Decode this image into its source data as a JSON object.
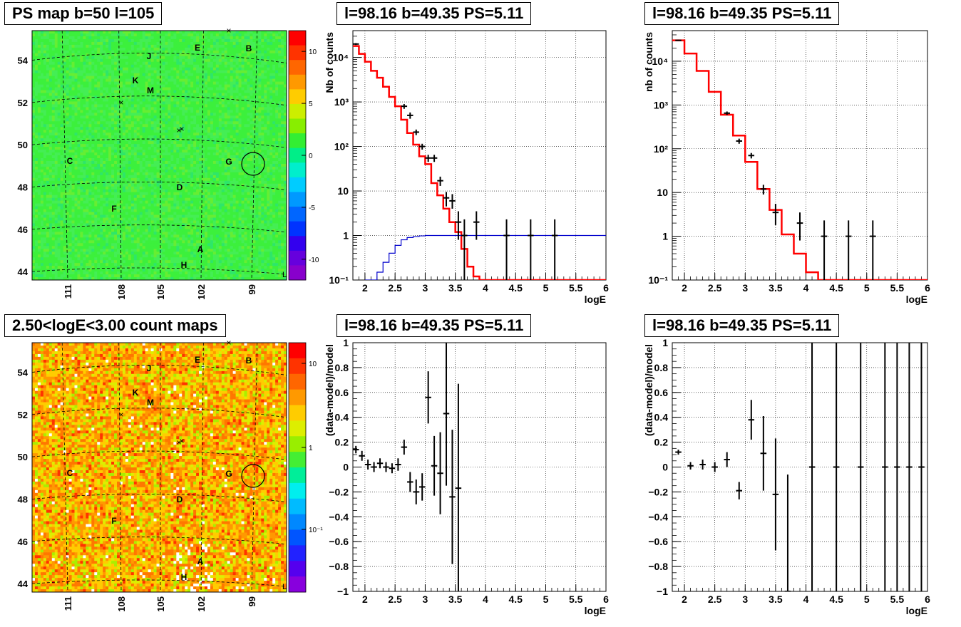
{
  "panels": {
    "map_top": {
      "title": "PS map b=50 l=105"
    },
    "map_bottom": {
      "title": "2.50<logE<3.00 count maps"
    },
    "spec1": {
      "title": "l=98.16 b=49.35 PS=5.11"
    },
    "spec2": {
      "title": "l=98.16 b=49.35 PS=5.11"
    },
    "res1": {
      "title": "l=98.16 b=49.35 PS=5.11"
    },
    "res2": {
      "title": "l=98.16 b=49.35 PS=5.11"
    }
  },
  "colors": {
    "model": "#ff0000",
    "background_model": "#0000cc",
    "data": "#000000"
  },
  "chart_data": [
    {
      "type": "heatmap",
      "title": "PS map b=50 l=105",
      "x_ticks": [
        "111",
        "108",
        "105",
        "102",
        "99"
      ],
      "y_ticks": [
        "44",
        "46",
        "48",
        "50",
        "52",
        "54"
      ],
      "ylim": [
        43.6,
        55.4
      ],
      "colorbar_ticks": [
        "10",
        "5",
        "0",
        "-5",
        "-10"
      ],
      "colorbar_range": [
        -12,
        12
      ],
      "source_labels": [
        "J",
        "E",
        "B",
        "K",
        "M",
        "C",
        "G",
        "D",
        "F",
        "A",
        "H"
      ],
      "circle_marker": {
        "l": 98.16,
        "b": 49.35
      }
    },
    {
      "type": "heatmap",
      "title": "2.50<logE<3.00 count maps",
      "x_ticks": [
        "111",
        "108",
        "105",
        "102",
        "99"
      ],
      "y_ticks": [
        "44",
        "46",
        "48",
        "50",
        "52",
        "54"
      ],
      "ylim": [
        43.6,
        55.4
      ],
      "colorbar_ticks": [
        "10",
        "1",
        "10⁻¹"
      ],
      "colorbar_scale": "log",
      "source_labels": [
        "J",
        "E",
        "B",
        "K",
        "M",
        "C",
        "G",
        "D",
        "F",
        "A",
        "H"
      ]
    },
    {
      "type": "line",
      "title": "l=98.16 b=49.35 PS=5.11",
      "xlabel": "logE",
      "ylabel": "Nb of counts",
      "yscale": "log",
      "xlim": [
        1.8,
        6
      ],
      "ylim": [
        0.1,
        40000
      ],
      "x_ticks": [
        "2",
        "2.5",
        "3",
        "3.5",
        "4",
        "4.5",
        "5",
        "5.5",
        "6"
      ],
      "y_ticks": [
        "10⁻¹",
        "1",
        "10",
        "10²",
        "10³",
        "10⁴"
      ],
      "grid": true,
      "series": [
        {
          "name": "",
          "kind": "step",
          "color": "#ff0000",
          "edges": [
            1.8,
            1.9,
            2.0,
            2.1,
            2.2,
            2.3,
            2.4,
            2.5,
            2.6,
            2.7,
            2.8,
            2.9,
            3.0,
            3.1,
            3.2,
            3.3,
            3.4,
            3.5,
            3.6,
            3.7,
            3.8,
            3.9,
            4.0,
            6.0
          ],
          "values": [
            18000,
            12000,
            8000,
            5000,
            3500,
            2200,
            1300,
            800,
            400,
            200,
            110,
            60,
            40,
            15,
            8,
            4,
            2,
            1.2,
            0.5,
            0.2,
            0.12,
            0.1,
            0.1
          ]
        },
        {
          "name": "",
          "kind": "step",
          "color": "#0000cc",
          "edges": [
            2.0,
            2.1,
            2.2,
            2.3,
            2.4,
            2.5,
            2.6,
            2.7,
            2.8,
            2.9,
            3.0,
            3.1,
            3.2,
            6.0
          ],
          "values": [
            0.08,
            0.1,
            0.15,
            0.25,
            0.4,
            0.6,
            0.8,
            0.9,
            0.95,
            0.98,
            1.0,
            1.0,
            1.0
          ]
        },
        {
          "name": "",
          "kind": "errorbar",
          "color": "#000000",
          "points": [
            {
              "x": 1.85,
              "y": 20000,
              "ylo": 19000,
              "yhi": 21000
            },
            {
              "x": 2.65,
              "y": 800,
              "ylo": 700,
              "yhi": 900
            },
            {
              "x": 2.75,
              "y": 500,
              "ylo": 420,
              "yhi": 580
            },
            {
              "x": 2.85,
              "y": 210,
              "ylo": 180,
              "yhi": 240
            },
            {
              "x": 2.95,
              "y": 100,
              "ylo": 85,
              "yhi": 115
            },
            {
              "x": 3.05,
              "y": 55,
              "ylo": 45,
              "yhi": 65
            },
            {
              "x": 3.15,
              "y": 55,
              "ylo": 45,
              "yhi": 65
            },
            {
              "x": 3.25,
              "y": 17,
              "ylo": 13,
              "yhi": 21
            },
            {
              "x": 3.35,
              "y": 7,
              "ylo": 4.5,
              "yhi": 9.5
            },
            {
              "x": 3.45,
              "y": 6,
              "ylo": 4,
              "yhi": 8.5
            },
            {
              "x": 3.55,
              "y": 2,
              "ylo": 0.8,
              "yhi": 3.5
            },
            {
              "x": 3.65,
              "y": 1,
              "ylo": 0.1,
              "yhi": 2.3
            },
            {
              "x": 3.85,
              "y": 2,
              "ylo": 0.8,
              "yhi": 3.5
            },
            {
              "x": 4.35,
              "y": 1,
              "ylo": 0.1,
              "yhi": 2.3
            },
            {
              "x": 4.75,
              "y": 1,
              "ylo": 0.1,
              "yhi": 2.3
            },
            {
              "x": 5.15,
              "y": 1,
              "ylo": 0.1,
              "yhi": 2.3
            }
          ]
        }
      ]
    },
    {
      "type": "line",
      "title": "l=98.16 b=49.35 PS=5.11",
      "xlabel": "logE",
      "ylabel": "nb of counts",
      "yscale": "log",
      "xlim": [
        1.8,
        6
      ],
      "ylim": [
        0.1,
        50000
      ],
      "x_ticks": [
        "2",
        "2.5",
        "3",
        "3.5",
        "4",
        "4.5",
        "5",
        "5.5",
        "6"
      ],
      "y_ticks": [
        "10⁻¹",
        "1",
        "10",
        "10²",
        "10³",
        "10⁴"
      ],
      "grid": true,
      "series": [
        {
          "name": "",
          "kind": "step",
          "color": "#ff0000",
          "edges": [
            1.8,
            2.0,
            2.2,
            2.4,
            2.6,
            2.8,
            3.0,
            3.2,
            3.4,
            3.6,
            3.8,
            4.0,
            4.2,
            6.0
          ],
          "values": [
            30000,
            15000,
            6000,
            2000,
            600,
            200,
            50,
            12,
            4,
            1.1,
            0.4,
            0.15,
            0.1
          ]
        },
        {
          "name": "",
          "kind": "errorbar",
          "color": "#000000",
          "points": [
            {
              "x": 1.9,
              "y": 30000,
              "ylo": 29000,
              "yhi": 31000
            },
            {
              "x": 2.7,
              "y": 650,
              "ylo": 590,
              "yhi": 710
            },
            {
              "x": 2.9,
              "y": 150,
              "ylo": 130,
              "yhi": 170
            },
            {
              "x": 3.1,
              "y": 70,
              "ylo": 60,
              "yhi": 80
            },
            {
              "x": 3.3,
              "y": 12,
              "ylo": 9,
              "yhi": 15
            },
            {
              "x": 3.5,
              "y": 3.5,
              "ylo": 1.8,
              "yhi": 5.5
            },
            {
              "x": 3.9,
              "y": 2,
              "ylo": 0.8,
              "yhi": 3.5
            },
            {
              "x": 4.3,
              "y": 1,
              "ylo": 0.1,
              "yhi": 2.3
            },
            {
              "x": 4.7,
              "y": 1,
              "ylo": 0.1,
              "yhi": 2.3
            },
            {
              "x": 5.1,
              "y": 1,
              "ylo": 0.1,
              "yhi": 2.3
            }
          ]
        }
      ]
    },
    {
      "type": "scatter",
      "title": "l=98.16 b=49.35 PS=5.11",
      "xlabel": "logE",
      "ylabel": "(data-model)/model",
      "xlim": [
        1.8,
        6
      ],
      "ylim": [
        -1,
        1
      ],
      "x_ticks": [
        "2",
        "2.5",
        "3",
        "3.5",
        "4",
        "4.5",
        "5",
        "5.5",
        "6"
      ],
      "y_ticks": [
        "−1",
        "−0.8",
        "−0.6",
        "−0.4",
        "−0.2",
        "0",
        "0.2",
        "0.4",
        "0.6",
        "0.8",
        "1"
      ],
      "grid": true,
      "series": [
        {
          "name": "",
          "kind": "errorbar",
          "color": "#000000",
          "points": [
            {
              "x": 1.85,
              "y": 0.14,
              "ylo": 0.11,
              "yhi": 0.17
            },
            {
              "x": 1.95,
              "y": 0.09,
              "ylo": 0.05,
              "yhi": 0.13
            },
            {
              "x": 2.05,
              "y": 0.02,
              "ylo": -0.02,
              "yhi": 0.06
            },
            {
              "x": 2.15,
              "y": 0.0,
              "ylo": -0.04,
              "yhi": 0.04
            },
            {
              "x": 2.25,
              "y": 0.03,
              "ylo": -0.01,
              "yhi": 0.07
            },
            {
              "x": 2.35,
              "y": 0.0,
              "ylo": -0.04,
              "yhi": 0.04
            },
            {
              "x": 2.45,
              "y": -0.01,
              "ylo": -0.05,
              "yhi": 0.03
            },
            {
              "x": 2.55,
              "y": 0.02,
              "ylo": -0.03,
              "yhi": 0.07
            },
            {
              "x": 2.65,
              "y": 0.16,
              "ylo": 0.1,
              "yhi": 0.22
            },
            {
              "x": 2.75,
              "y": -0.12,
              "ylo": -0.2,
              "yhi": -0.04
            },
            {
              "x": 2.85,
              "y": -0.2,
              "ylo": -0.3,
              "yhi": -0.1
            },
            {
              "x": 2.95,
              "y": -0.16,
              "ylo": -0.27,
              "yhi": -0.05
            },
            {
              "x": 3.05,
              "y": 0.56,
              "ylo": 0.35,
              "yhi": 0.77
            },
            {
              "x": 3.15,
              "y": 0.01,
              "ylo": -0.23,
              "yhi": 0.25
            },
            {
              "x": 3.25,
              "y": -0.05,
              "ylo": -0.38,
              "yhi": 0.28
            },
            {
              "x": 3.35,
              "y": 0.43,
              "ylo": -0.15,
              "yhi": 1.0
            },
            {
              "x": 3.45,
              "y": -0.24,
              "ylo": -0.78,
              "yhi": 0.3
            },
            {
              "x": 3.55,
              "y": -0.17,
              "ylo": -1.0,
              "yhi": 0.67
            }
          ]
        }
      ]
    },
    {
      "type": "scatter",
      "title": "l=98.16 b=49.35 PS=5.11",
      "xlabel": "logE",
      "ylabel": "(data-model)/model",
      "xlim": [
        1.8,
        6
      ],
      "ylim": [
        -1,
        1
      ],
      "x_ticks": [
        "2",
        "2.5",
        "3",
        "3.5",
        "4",
        "4.5",
        "5",
        "5.5",
        "6"
      ],
      "y_ticks": [
        "−1",
        "−0.8",
        "−0.6",
        "−0.4",
        "−0.2",
        "0",
        "0.2",
        "0.4",
        "0.6",
        "0.8",
        "1"
      ],
      "grid": true,
      "series": [
        {
          "name": "",
          "kind": "errorbar",
          "color": "#000000",
          "points": [
            {
              "x": 1.9,
              "y": 0.12,
              "ylo": 0.1,
              "yhi": 0.14
            },
            {
              "x": 2.1,
              "y": 0.01,
              "ylo": -0.02,
              "yhi": 0.04
            },
            {
              "x": 2.3,
              "y": 0.02,
              "ylo": -0.02,
              "yhi": 0.06
            },
            {
              "x": 2.5,
              "y": 0.0,
              "ylo": -0.04,
              "yhi": 0.04
            },
            {
              "x": 2.7,
              "y": 0.06,
              "ylo": 0.0,
              "yhi": 0.12
            },
            {
              "x": 2.9,
              "y": -0.19,
              "ylo": -0.26,
              "yhi": -0.12
            },
            {
              "x": 3.1,
              "y": 0.38,
              "ylo": 0.22,
              "yhi": 0.54
            },
            {
              "x": 3.3,
              "y": 0.11,
              "ylo": -0.19,
              "yhi": 0.41
            },
            {
              "x": 3.5,
              "y": -0.22,
              "ylo": -0.67,
              "yhi": 0.23
            },
            {
              "x": 3.7,
              "y": -1.0,
              "ylo": -1.0,
              "yhi": -0.06
            },
            {
              "x": 4.1,
              "y": 0,
              "ylo": -1.0,
              "yhi": 1.0
            },
            {
              "x": 4.5,
              "y": 0,
              "ylo": -1.0,
              "yhi": 1.0
            },
            {
              "x": 4.9,
              "y": 0,
              "ylo": -1.0,
              "yhi": 1.0
            },
            {
              "x": 5.3,
              "y": 0,
              "ylo": -1.0,
              "yhi": 1.0
            },
            {
              "x": 5.5,
              "y": 0,
              "ylo": -1.0,
              "yhi": 1.0
            },
            {
              "x": 5.7,
              "y": 0,
              "ylo": -1.0,
              "yhi": 1.0
            },
            {
              "x": 5.9,
              "y": 0,
              "ylo": -1.0,
              "yhi": 1.0
            }
          ]
        }
      ]
    }
  ]
}
